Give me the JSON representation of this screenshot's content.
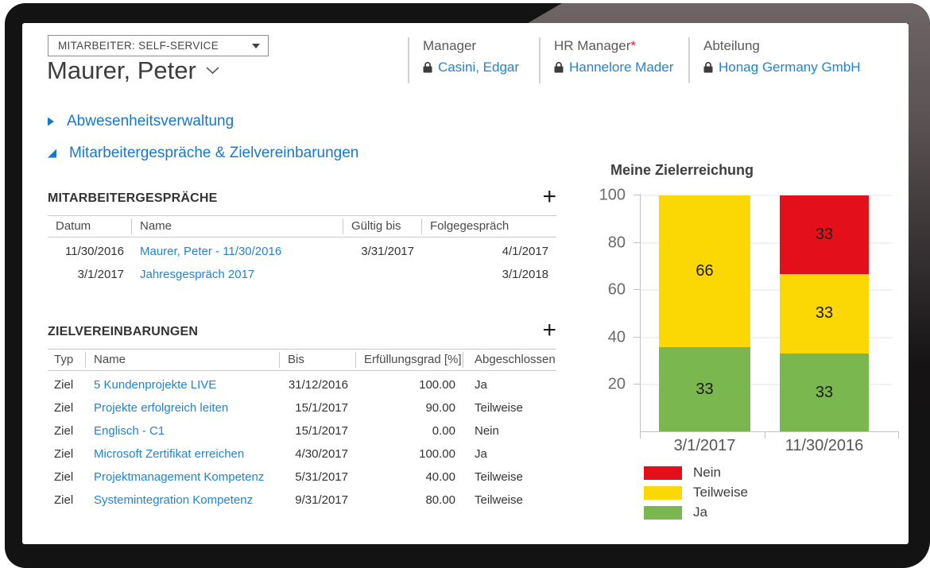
{
  "app": {
    "role_selector": "MITARBEITER: SELF-SERVICE",
    "page_title": "Maurer, Peter"
  },
  "colors": {
    "link_blue": "#2383d2",
    "section_blue": "#1878c8",
    "required_asterisk": "#e8112d",
    "chart_red": "#e30f1a",
    "chart_yellow": "#fbd703",
    "chart_green": "#7ab74e"
  },
  "icons": {
    "add": "+",
    "role_caret": "caret-down-icon",
    "title_chevron": "chevron-down-icon",
    "lock": "lock-icon"
  },
  "header_fields": [
    {
      "label": "Manager",
      "required_mark": "",
      "value": "Casini, Edgar"
    },
    {
      "label": "HR Manager",
      "required_mark": "*",
      "value": "Hannelore Mader"
    },
    {
      "label": "Abteilung",
      "required_mark": "",
      "value": "Honag Germany GmbH"
    }
  ],
  "sections": [
    {
      "label": "Abwesenheitsverwaltung",
      "expanded": false
    },
    {
      "label": "Mitarbeitergespräche & Zielvereinbarungen",
      "expanded": true
    }
  ],
  "meetings_table": {
    "title": "MITARBEITERGESPRÄCHE",
    "columns": [
      "Datum",
      "Name",
      "Gültig bis",
      "Folgegespräch"
    ],
    "rows": [
      {
        "datum": "11/30/2016",
        "name": "Maurer, Peter - 11/30/2016",
        "gueltig_bis": "3/31/2017",
        "folgegespraech": "4/1/2017"
      },
      {
        "datum": "3/1/2017",
        "name": "Jahresgespräch 2017",
        "gueltig_bis": "",
        "folgegespraech": "3/1/2018"
      }
    ]
  },
  "goals_table": {
    "title": "ZIELVEREINBARUNGEN",
    "columns": [
      "Typ",
      "Name",
      "Bis",
      "Erfüllungsgrad [%]",
      "Abgeschlossen"
    ],
    "rows": [
      {
        "typ": "Ziel",
        "name": "5 Kundenprojekte LIVE",
        "bis": "31/12/2016",
        "erfuellungsgrad": "100.00",
        "abgeschlossen": "Ja"
      },
      {
        "typ": "Ziel",
        "name": "Projekte erfolgreich leiten",
        "bis": "15/1/2017",
        "erfuellungsgrad": "90.00",
        "abgeschlossen": "Teilweise"
      },
      {
        "typ": "Ziel",
        "name": "Englisch - C1",
        "bis": "15/1/2017",
        "erfuellungsgrad": "0.00",
        "abgeschlossen": "Nein"
      },
      {
        "typ": "Ziel",
        "name": "Microsoft Zertifikat erreichen",
        "bis": "4/30/2017",
        "erfuellungsgrad": "100.00",
        "abgeschlossen": "Ja"
      },
      {
        "typ": "Ziel",
        "name": "Projektmanagement Kompetenz",
        "bis": "5/31/2017",
        "erfuellungsgrad": "40.00",
        "abgeschlossen": "Teilweise"
      },
      {
        "typ": "Ziel",
        "name": "Systemintegration Kompetenz",
        "bis": "9/31/2017",
        "erfuellungsgrad": "80.00",
        "abgeschlossen": "Teilweise"
      }
    ]
  },
  "chart_data": {
    "type": "bar",
    "stacked": true,
    "title": "Meine Zielerreichung",
    "categories": [
      "3/1/2017",
      "11/30/2016"
    ],
    "series": [
      {
        "name": "Nein",
        "color": "#e30f1a",
        "values": [
          0,
          33
        ]
      },
      {
        "name": "Teilweise",
        "color": "#fbd703",
        "values": [
          66,
          33
        ]
      },
      {
        "name": "Ja",
        "color": "#7ab74e",
        "values": [
          33,
          33
        ]
      }
    ],
    "ylim": [
      0,
      100
    ],
    "yticks": [
      100,
      80,
      60,
      40,
      20
    ],
    "grid": true,
    "value_labels": true,
    "legend_position": "bottom-left",
    "xlabel": "",
    "ylabel": ""
  }
}
